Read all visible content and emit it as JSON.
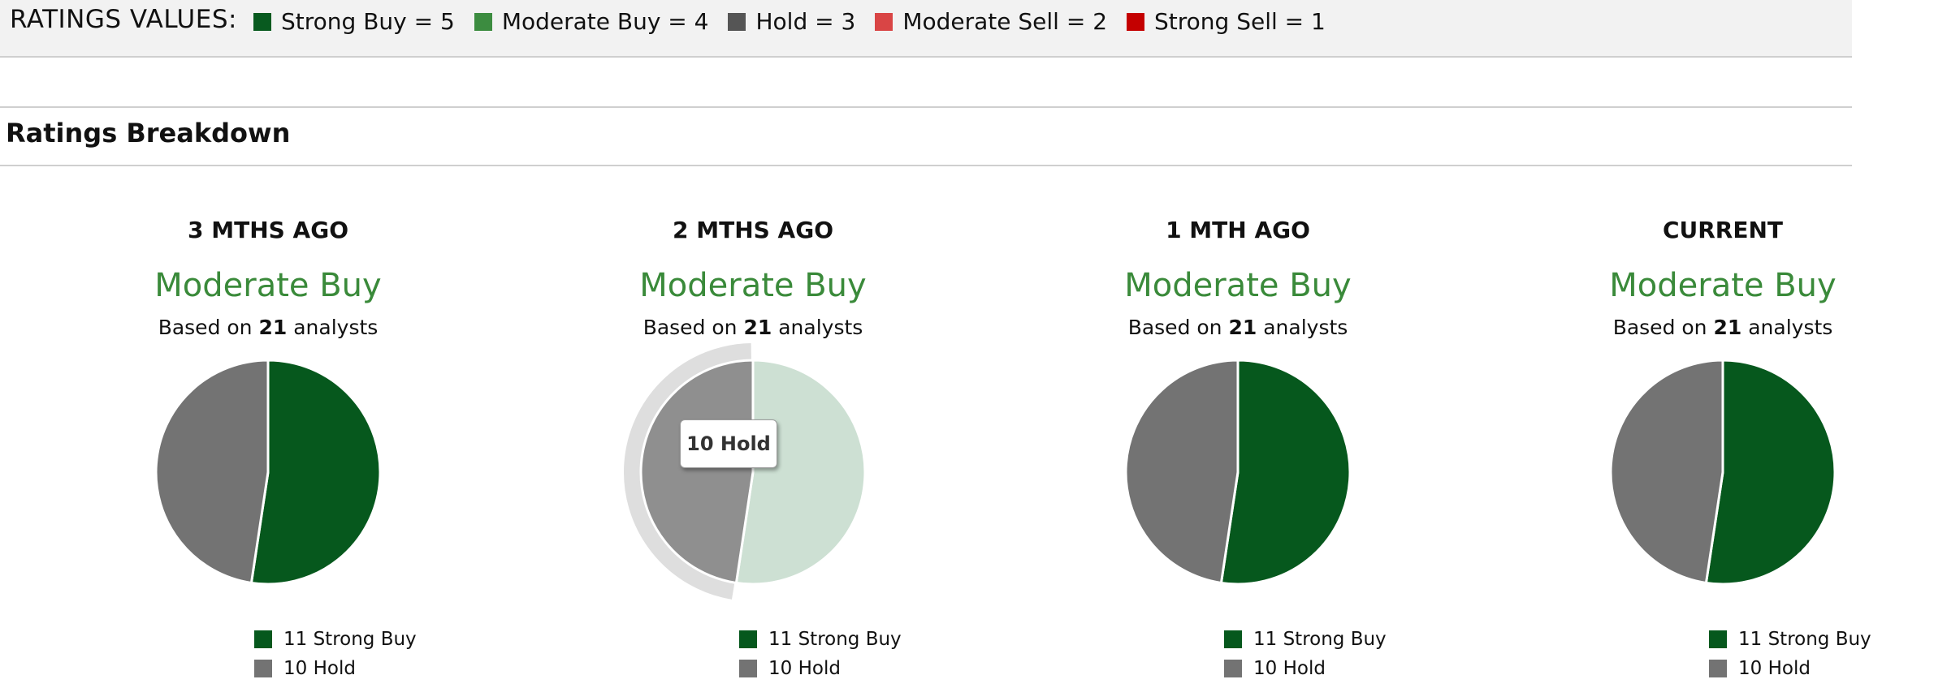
{
  "ratings_values": {
    "title": "RATINGS VALUES:",
    "items": [
      {
        "label": "Strong Buy = 5",
        "color": "#085a1f"
      },
      {
        "label": "Moderate Buy = 4",
        "color": "#3c8c40"
      },
      {
        "label": "Hold = 3",
        "color": "#555555"
      },
      {
        "label": "Moderate Sell = 2",
        "color": "#d94545"
      },
      {
        "label": "Strong Sell = 1",
        "color": "#c40000"
      }
    ]
  },
  "section": {
    "title": "Ratings Breakdown"
  },
  "chart_data": [
    {
      "type": "pie",
      "title": "3 MTHS AGO",
      "consensus": "Moderate Buy",
      "based_prefix": "Based on",
      "analysts": "21",
      "based_suffix": "analysts",
      "categories": [
        "Strong Buy",
        "Hold"
      ],
      "values": [
        11,
        10
      ],
      "colors": [
        "#06581d",
        "#737373"
      ],
      "legend": [
        "11 Strong Buy",
        "10 Hold"
      ]
    },
    {
      "type": "pie",
      "title": "2 MTHS AGO",
      "consensus": "Moderate Buy",
      "based_prefix": "Based on",
      "analysts": "21",
      "based_suffix": "analysts",
      "categories": [
        "Strong Buy",
        "Hold"
      ],
      "values": [
        11,
        10
      ],
      "colors": [
        "#cde0d3",
        "#8f8f8f"
      ],
      "legend": [
        "11 Strong Buy",
        "10 Hold"
      ],
      "highlighted": "Hold",
      "tooltip": "10 Hold"
    },
    {
      "type": "pie",
      "title": "1 MTH AGO",
      "consensus": "Moderate Buy",
      "based_prefix": "Based on",
      "analysts": "21",
      "based_suffix": "analysts",
      "categories": [
        "Strong Buy",
        "Hold"
      ],
      "values": [
        11,
        10
      ],
      "colors": [
        "#06581d",
        "#737373"
      ],
      "legend": [
        "11 Strong Buy",
        "10 Hold"
      ]
    },
    {
      "type": "pie",
      "title": "CURRENT",
      "consensus": "Moderate Buy",
      "based_prefix": "Based on",
      "analysts": "21",
      "based_suffix": "analysts",
      "categories": [
        "Strong Buy",
        "Hold"
      ],
      "values": [
        11,
        10
      ],
      "colors": [
        "#06581d",
        "#737373"
      ],
      "legend": [
        "11 Strong Buy",
        "10 Hold"
      ]
    }
  ],
  "legend_swatch_colors": [
    "#06581d",
    "#737373"
  ]
}
